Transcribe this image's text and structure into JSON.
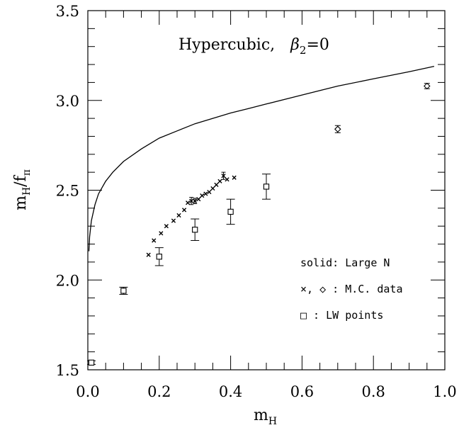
{
  "chart_data": {
    "type": "scatter",
    "title_main": "Hypercubic,",
    "title_beta": "β",
    "title_beta_sub": "2",
    "title_beta_value": "=0",
    "xlabel": {
      "main": "m",
      "sub": "H"
    },
    "ylabel": {
      "main": "m",
      "sub1": "H",
      "sep": "/f",
      "sub2": "π"
    },
    "xlim": [
      0.0,
      1.0
    ],
    "ylim": [
      1.5,
      3.5
    ],
    "xticks": [
      {
        "value": 0.0,
        "label": "0.0"
      },
      {
        "value": 0.2,
        "label": "0.2"
      },
      {
        "value": 0.4,
        "label": "0.4"
      },
      {
        "value": 0.6,
        "label": "0.6"
      },
      {
        "value": 0.8,
        "label": "0.8"
      },
      {
        "value": 1.0,
        "label": "1.0"
      }
    ],
    "yticks": [
      {
        "value": 1.5,
        "label": "1.5"
      },
      {
        "value": 2.0,
        "label": "2.0"
      },
      {
        "value": 2.5,
        "label": "2.5"
      },
      {
        "value": 3.0,
        "label": "3.0"
      },
      {
        "value": 3.5,
        "label": "3.5"
      }
    ],
    "grid": false,
    "legend": {
      "placement": "bottom-right",
      "lines": [
        "solid: Large N",
        "×, ◇ : M.C. data",
        "□ : LW points"
      ]
    },
    "series": [
      {
        "marker": "line",
        "x": [
          0.003,
          0.005,
          0.01,
          0.02,
          0.03,
          0.05,
          0.07,
          0.1,
          0.15,
          0.2,
          0.25,
          0.3,
          0.35,
          0.4,
          0.45,
          0.5,
          0.6,
          0.7,
          0.8,
          0.9,
          0.97
        ],
        "y": [
          2.16,
          2.24,
          2.33,
          2.42,
          2.48,
          2.55,
          2.6,
          2.66,
          2.73,
          2.79,
          2.83,
          2.87,
          2.9,
          2.93,
          2.955,
          2.98,
          3.03,
          3.08,
          3.12,
          3.16,
          3.19
        ]
      },
      {
        "marker": "x",
        "x": [
          0.17,
          0.185,
          0.205,
          0.22,
          0.24,
          0.255,
          0.27,
          0.28,
          0.29,
          0.3,
          0.31,
          0.32,
          0.33,
          0.34,
          0.35,
          0.36,
          0.37,
          0.38,
          0.39,
          0.41
        ],
        "y": [
          2.14,
          2.22,
          2.26,
          2.3,
          2.33,
          2.36,
          2.39,
          2.43,
          2.44,
          2.44,
          2.45,
          2.47,
          2.48,
          2.49,
          2.51,
          2.53,
          2.55,
          2.58,
          2.56,
          2.57
        ],
        "yerr": [
          0,
          0,
          0,
          0,
          0,
          0,
          0,
          0,
          0.02,
          0.015,
          0,
          0,
          0,
          0,
          0,
          0,
          0,
          0.02,
          0,
          0
        ]
      },
      {
        "marker": "diamond",
        "x": [
          0.7,
          0.95
        ],
        "y": [
          2.84,
          3.08
        ],
        "yerr": [
          0.02,
          0.015
        ]
      },
      {
        "marker": "square",
        "x": [
          0.01,
          0.1,
          0.2,
          0.3,
          0.4,
          0.5
        ],
        "y": [
          1.54,
          1.94,
          2.13,
          2.28,
          2.38,
          2.52
        ],
        "yerr": [
          0.01,
          0.02,
          0.05,
          0.06,
          0.07,
          0.07
        ]
      }
    ]
  }
}
